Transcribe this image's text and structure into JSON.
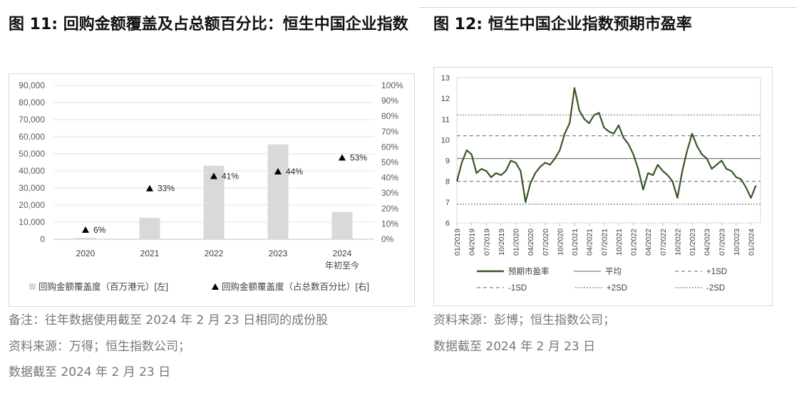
{
  "fig11": {
    "title": "图 11: 回购金额覆盖及占总额百分比：恒生中国企业指数",
    "notes": [
      "备注：往年数据使用截至 2024 年 2 月 23 日相同的成份股",
      "资料来源：万得；恒生指数公司；",
      "数据截至  2024 年 2 月 23 日"
    ]
  },
  "fig12": {
    "title": "图 12:  恒生中国企业指数预期市盈率",
    "notes": [
      "资料来源：彭博；恒生指数公司；",
      "数据截至  2024 年 2 月 23 日"
    ]
  },
  "chart_data": [
    {
      "type": "bar",
      "categories": [
        "2020",
        "2021",
        "2022",
        "2023",
        "2024\n年初至今"
      ],
      "category_lines": [
        [
          "2020"
        ],
        [
          "2021"
        ],
        [
          "2022"
        ],
        [
          "2023"
        ],
        [
          "2024",
          "年初至今"
        ]
      ],
      "series": [
        {
          "name": "回购金额覆盖度（百万港元）[左]",
          "type": "bar",
          "axis": "left",
          "color": "#d9d9d9",
          "values": [
            800,
            12500,
            43000,
            55500,
            16000
          ]
        },
        {
          "name": "回购金额覆盖度（占总数百分比）[右]",
          "type": "scatter",
          "marker": "triangle",
          "axis": "right",
          "color": "#000000",
          "values": [
            6,
            33,
            41,
            44,
            53
          ],
          "data_labels": [
            "6%",
            "33%",
            "41%",
            "44%",
            "53%"
          ]
        }
      ],
      "y_left": {
        "min": 0,
        "max": 90000,
        "ticks": [
          "0",
          "10,000",
          "20,000",
          "30,000",
          "40,000",
          "50,000",
          "60,000",
          "70,000",
          "80,000",
          "90,000"
        ]
      },
      "y_right": {
        "min": 0,
        "max": 100,
        "ticks": [
          "0%",
          "10%",
          "20%",
          "30%",
          "40%",
          "50%",
          "60%",
          "70%",
          "80%",
          "90%",
          "100%"
        ]
      },
      "grid": true,
      "legend": "bottom"
    },
    {
      "type": "line",
      "x_ticks": [
        "01/2019",
        "04/2019",
        "07/2019",
        "10/2019",
        "01/2020",
        "04/2020",
        "07/2020",
        "10/2020",
        "01/2021",
        "04/2021",
        "07/2021",
        "10/2021",
        "01/2022",
        "04/2022",
        "07/2022",
        "10/2022",
        "01/2023",
        "04/2023",
        "07/2023",
        "10/2023",
        "01/2024"
      ],
      "y": {
        "min": 6,
        "max": 13,
        "ticks": [
          "6",
          "7",
          "8",
          "9",
          "10",
          "11",
          "12",
          "13"
        ]
      },
      "series": [
        {
          "name": "预期市盈率",
          "color": "#375623",
          "style": "solid",
          "x": [
            "2019-01",
            "2019-02",
            "2019-03",
            "2019-04",
            "2019-05",
            "2019-06",
            "2019-07",
            "2019-08",
            "2019-09",
            "2019-10",
            "2019-11",
            "2019-12",
            "2020-01",
            "2020-02",
            "2020-03",
            "2020-04",
            "2020-05",
            "2020-06",
            "2020-07",
            "2020-08",
            "2020-09",
            "2020-10",
            "2020-11",
            "2020-12",
            "2021-01",
            "2021-02",
            "2021-03",
            "2021-04",
            "2021-05",
            "2021-06",
            "2021-07",
            "2021-08",
            "2021-09",
            "2021-10",
            "2021-11",
            "2021-12",
            "2022-01",
            "2022-02",
            "2022-03",
            "2022-04",
            "2022-05",
            "2022-06",
            "2022-07",
            "2022-08",
            "2022-09",
            "2022-10",
            "2022-11",
            "2022-12",
            "2023-01",
            "2023-02",
            "2023-03",
            "2023-04",
            "2023-05",
            "2023-06",
            "2023-07",
            "2023-08",
            "2023-09",
            "2023-10",
            "2023-11",
            "2023-12",
            "2024-01",
            "2024-02"
          ],
          "values": [
            8.0,
            8.9,
            9.5,
            9.3,
            8.4,
            8.6,
            8.5,
            8.2,
            8.4,
            8.3,
            8.5,
            9.0,
            8.9,
            8.5,
            7.0,
            7.9,
            8.4,
            8.7,
            8.9,
            8.8,
            9.1,
            9.5,
            10.3,
            10.8,
            12.5,
            11.4,
            11.0,
            10.8,
            11.2,
            11.3,
            10.6,
            10.4,
            10.3,
            10.7,
            10.1,
            9.8,
            9.3,
            8.6,
            7.6,
            8.4,
            8.3,
            8.8,
            8.5,
            8.3,
            8.0,
            7.2,
            8.5,
            9.5,
            10.3,
            9.7,
            9.3,
            9.1,
            8.6,
            8.8,
            9.0,
            8.6,
            8.5,
            8.2,
            8.1,
            7.7,
            7.2,
            7.8
          ]
        },
        {
          "name": "平均",
          "color": "#7f7f7f",
          "style": "solid",
          "level": 9.1
        },
        {
          "name": "+1SD",
          "color": "#7f7f7f",
          "style": "dash",
          "level": 10.2
        },
        {
          "name": "-1SD",
          "color": "#7f7f7f",
          "style": "dash",
          "level": 8.0
        },
        {
          "name": "+2SD",
          "color": "#7f7f7f",
          "style": "dot",
          "level": 11.2
        },
        {
          "name": "-2SD",
          "color": "#7f7f7f",
          "style": "dot",
          "level": 6.9
        }
      ],
      "legend": "bottom"
    }
  ]
}
